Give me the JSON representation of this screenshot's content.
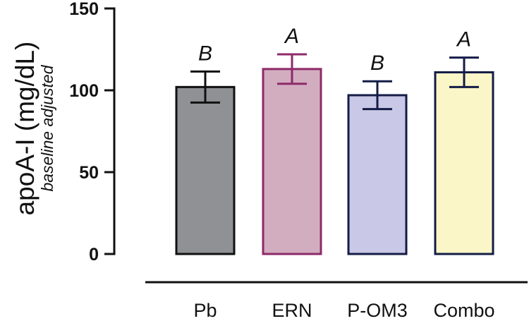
{
  "chart_data": {
    "type": "bar",
    "ylabel": "apoA-I (mg/dL)",
    "ylabel_sub": "baseline adjusted",
    "ylim": [
      0,
      150
    ],
    "yticks": [
      0,
      50,
      100,
      150
    ],
    "ytick_labels": [
      "0",
      "50",
      "100",
      "150"
    ],
    "grid": false,
    "legend": "none",
    "categories": [
      "Pb",
      "ERN",
      "P-OM3",
      "Combo"
    ],
    "values": [
      102,
      113,
      97,
      111
    ],
    "error": [
      9.5,
      9,
      8.5,
      9
    ],
    "significance": [
      "B",
      "A",
      "B",
      "A"
    ],
    "fill_colors": [
      "#8f9194",
      "#d2adbf",
      "#c9c8e6",
      "#fbf6c8"
    ],
    "edge_colors": [
      "#111111",
      "#8e2a6a",
      "#141c46",
      "#141c46"
    ]
  }
}
